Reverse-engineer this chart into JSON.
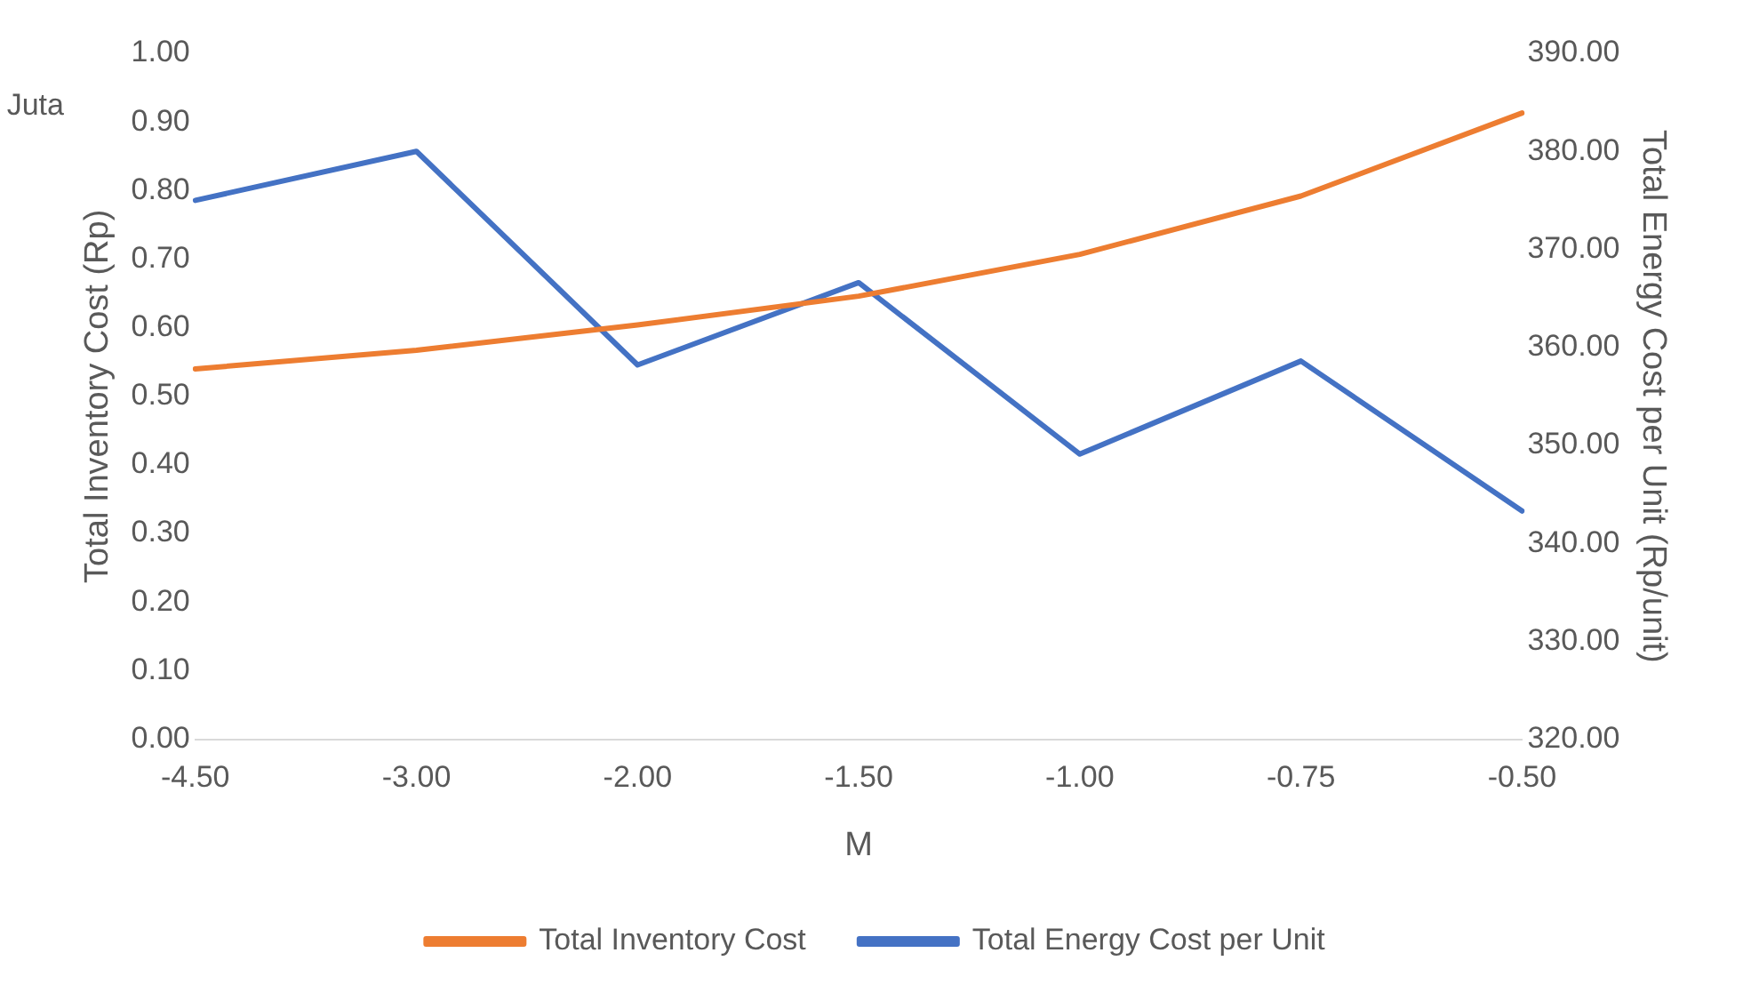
{
  "chart_data": {
    "type": "line",
    "xlabel": "M",
    "ylabel": "Total Inventory Cost (Rp)",
    "y2label": "Total Energy Cost per Unit (Rp/unit)",
    "annotations": [
      "Juta"
    ],
    "categories": [
      "-4.50",
      "-3.00",
      "-2.00",
      "-1.50",
      "-1.00",
      "-0.75",
      "-0.50"
    ],
    "series": [
      {
        "name": "Total Inventory Cost",
        "color": "#ed7d31",
        "values": [
          0.54,
          0.567,
          0.604,
          0.646,
          0.707,
          0.792,
          0.913
        ]
      },
      {
        "name": "Total Energy Cost per Unit",
        "color": "#4472c4",
        "axis": "y2",
        "values": [
          375,
          380,
          358.2,
          366.6,
          349.1,
          358.6,
          343.3
        ]
      }
    ],
    "ylim": [
      0,
      1
    ],
    "yticks": [
      {
        "value": 0,
        "label": "0.00"
      },
      {
        "value": 0.1,
        "label": "0.10"
      },
      {
        "value": 0.2,
        "label": "0.20"
      },
      {
        "value": 0.3,
        "label": "0.30"
      },
      {
        "value": 0.4,
        "label": "0.40"
      },
      {
        "value": 0.5,
        "label": "0.50"
      },
      {
        "value": 0.6,
        "label": "0.60"
      },
      {
        "value": 0.7,
        "label": "0.70"
      },
      {
        "value": 0.8,
        "label": "0.80"
      },
      {
        "value": 0.9,
        "label": "0.90"
      },
      {
        "value": 1,
        "label": "1.00"
      }
    ],
    "y2lim": [
      320,
      390
    ],
    "y2ticks": [
      {
        "value": 320,
        "label": "320.00"
      },
      {
        "value": 330,
        "label": "330.00"
      },
      {
        "value": 340,
        "label": "340.00"
      },
      {
        "value": 350,
        "label": "350.00"
      },
      {
        "value": 360,
        "label": "360.00"
      },
      {
        "value": 370,
        "label": "370.00"
      },
      {
        "value": 380,
        "label": "380.00"
      },
      {
        "value": 390,
        "label": "390.00"
      }
    ],
    "grid": false,
    "legend": "bottom",
    "marker": "none",
    "line_style": "solid"
  }
}
